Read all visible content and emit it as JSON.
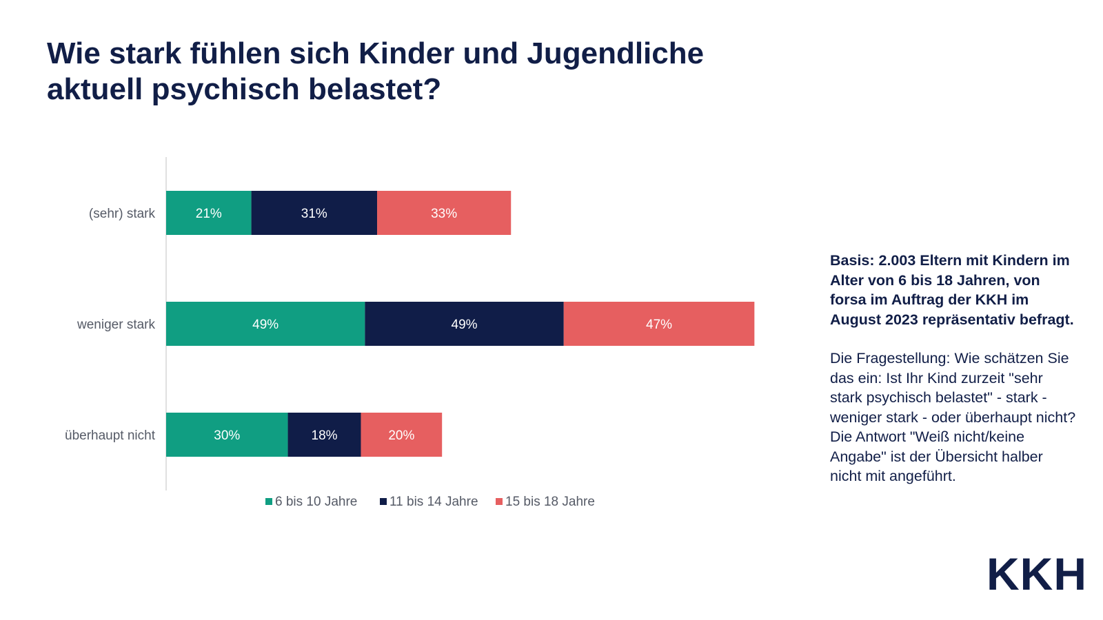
{
  "title": {
    "line1": "Wie stark fühlen sich Kinder und Jugendliche",
    "line2": "aktuell psychisch belastet?"
  },
  "chart_data": {
    "type": "bar",
    "orientation": "horizontal",
    "stacked": true,
    "categories": [
      "(sehr) stark",
      "weniger stark",
      "überhaupt nicht"
    ],
    "series": [
      {
        "name": "6 bis 10 Jahre",
        "color": "#109e82",
        "values": [
          21,
          49,
          30
        ],
        "labels": [
          "21%",
          "49%",
          "30%"
        ]
      },
      {
        "name": "11 bis 14 Jahre",
        "color": "#101d48",
        "values": [
          31,
          49,
          18
        ],
        "labels": [
          "31%",
          "49%",
          "18%"
        ]
      },
      {
        "name": "15 bis 18 Jahre",
        "color": "#e65f60",
        "values": [
          33,
          47,
          20
        ],
        "labels": [
          "33%",
          "47%",
          "20%"
        ]
      }
    ],
    "xlim": [
      0,
      148
    ],
    "grid": false,
    "legend": "bottom"
  },
  "note": {
    "bold": "Basis: 2.003 Eltern mit Kindern im Alter von 6 bis 18 Jahren, von forsa im Auftrag der KKH im August 2023 repräsentativ befragt.",
    "text": "Die Fragestellung: Wie schätzen Sie das ein: Ist Ihr Kind zurzeit \"sehr stark psychisch belastet\" - stark - weniger stark - oder überhaupt nicht? Die Antwort \"Weiß nicht/keine Angabe\" ist der Übersicht halber nicht mit angeführt."
  },
  "logo": "KKH"
}
